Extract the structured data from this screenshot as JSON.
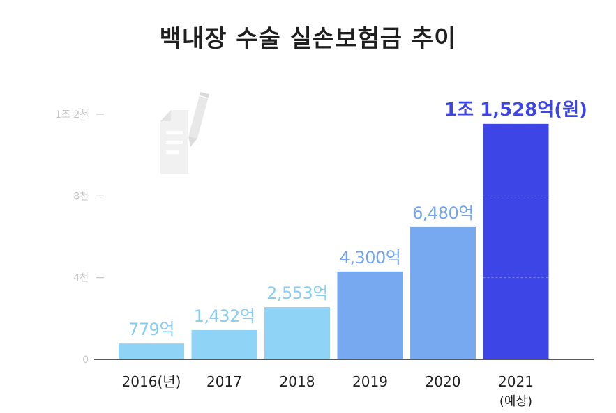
{
  "chart_data": {
    "type": "bar",
    "title": "백내장 수술 실손보험금 추이",
    "categories": [
      "2016(년)",
      "2017",
      "2018",
      "2019",
      "2020",
      "2021"
    ],
    "category_sublabels": [
      "",
      "",
      "",
      "",
      "",
      "(예상)"
    ],
    "values": [
      779,
      1432,
      2553,
      4300,
      6480,
      11528
    ],
    "value_labels": [
      "779억",
      "1,432억",
      "2,553억",
      "4,300억",
      "6,480억",
      "1조 1,528억(원)"
    ],
    "yticks": [
      {
        "value": 0,
        "label": "0"
      },
      {
        "value": 4000,
        "label": "4천"
      },
      {
        "value": 8000,
        "label": "8천"
      },
      {
        "value": 12000,
        "label": "1조 2천"
      }
    ],
    "ylim": [
      0,
      12000
    ],
    "grid": false,
    "colors": [
      "#8fd3f7",
      "#8fd3f7",
      "#8fd3f7",
      "#76a9ef",
      "#76a9ef",
      "#3e45e6"
    ],
    "label_colors": [
      "#89cdf2",
      "#89cdf2",
      "#89cdf2",
      "#72a5ec",
      "#72a5ec",
      "#3e45e6"
    ],
    "tick_color": "#c4c4c4",
    "axis_color": "#222222",
    "decoration_icon": "document-pen-icon"
  }
}
